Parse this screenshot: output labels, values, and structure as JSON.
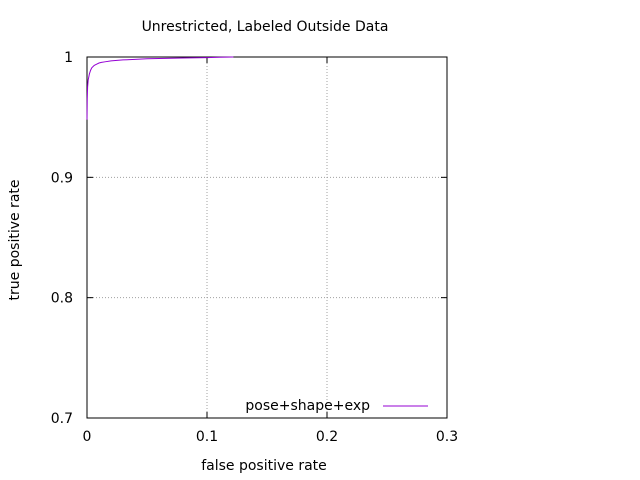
{
  "chart_data": {
    "type": "line",
    "title": "Unrestricted, Labeled Outside Data",
    "xlabel": "false positive rate",
    "ylabel": "true positive rate",
    "xlim": [
      0,
      0.3
    ],
    "ylim": [
      0.7,
      1.0
    ],
    "xticks": [
      0,
      0.1,
      0.2,
      0.3
    ],
    "xtick_labels": [
      "0",
      "0.1",
      "0.2",
      "0.3"
    ],
    "yticks": [
      0.7,
      0.8,
      0.9,
      1.0
    ],
    "ytick_labels": [
      "0.7",
      "0.8",
      "0.9",
      "1"
    ],
    "grid": true,
    "legend_position": "bottom-right",
    "series": [
      {
        "name": "pose+shape+exp",
        "color": "#9400d3",
        "x": [
          0,
          0.0002,
          0.0005,
          0.001,
          0.002,
          0.003,
          0.004,
          0.006,
          0.008,
          0.01,
          0.012,
          0.015,
          0.02,
          0.025,
          0.03,
          0.04,
          0.05,
          0.06,
          0.08,
          0.1,
          0.11,
          0.122
        ],
        "y": [
          0.948,
          0.965,
          0.975,
          0.981,
          0.986,
          0.989,
          0.991,
          0.993,
          0.994,
          0.995,
          0.9955,
          0.996,
          0.9968,
          0.9972,
          0.9976,
          0.998,
          0.9985,
          0.9988,
          0.9992,
          0.9995,
          0.9998,
          1.0
        ]
      }
    ]
  }
}
